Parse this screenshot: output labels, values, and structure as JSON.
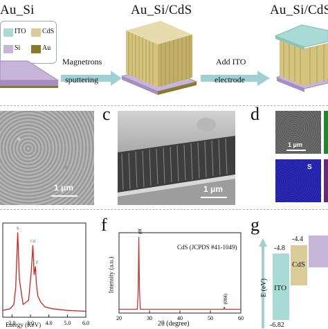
{
  "panel_a": {
    "titles": [
      "Au_Si",
      "Au_Si/CdS",
      "Au_Si/CdS"
    ],
    "legend": [
      {
        "label": "ITO",
        "color": "#a8dbd6"
      },
      {
        "label": "CdS",
        "color": "#d9cc98"
      },
      {
        "label": "Si",
        "color": "#c7b6da"
      },
      {
        "label": "Au",
        "color": "#8a7a2c"
      }
    ],
    "step1": [
      "Magnetrons",
      "sputtering"
    ],
    "step2": [
      "Add ITO",
      "electrode"
    ]
  },
  "panel_b": {
    "scale": "1 μm"
  },
  "panel_c": {
    "letter": "c",
    "scale": "1 μm"
  },
  "panel_d": {
    "letter": "d",
    "scale": "1 μm",
    "element": "S"
  },
  "panel_e": {
    "xlabel": "Energy (KeV)",
    "xticks": [
      "2.0",
      "3.0",
      "4.0",
      "5.0",
      "6.0"
    ],
    "peak_labels": [
      "S",
      "Cd",
      "Cd"
    ]
  },
  "panel_f": {
    "letter": "f",
    "ylabel": "Intensity (a.u.)",
    "xlabel": "2θ (degree)",
    "xticks": [
      "20",
      "30",
      "40",
      "50",
      "60"
    ],
    "reference": "CdS (JCPDS #41-1049)",
    "peak_labels": [
      "(002)",
      "(004)"
    ]
  },
  "panel_g": {
    "letter": "g",
    "ylabel": "E (eV)",
    "ito": {
      "label": "ITO",
      "top": "-4.8",
      "bottom": "-6.82"
    },
    "cds": {
      "label": "CdS",
      "top": "-4.4"
    }
  },
  "chart_data": [
    {
      "type": "line",
      "panel": "e",
      "xlabel": "Energy (KeV)",
      "xlim": [
        1.5,
        6.0
      ],
      "x": [
        1.5,
        1.9,
        2.1,
        2.2,
        2.31,
        2.4,
        2.6,
        2.9,
        3.05,
        3.13,
        3.2,
        3.27,
        3.32,
        3.4,
        3.55,
        3.8,
        4.2,
        5.0,
        6.0
      ],
      "y": [
        0.08,
        0.1,
        0.15,
        0.35,
        1.0,
        0.45,
        0.15,
        0.2,
        0.55,
        0.85,
        0.5,
        0.6,
        0.4,
        0.25,
        0.18,
        0.12,
        0.1,
        0.08,
        0.07
      ]
    },
    {
      "type": "line",
      "panel": "f",
      "xlabel": "2θ (degree)",
      "ylabel": "Intensity (a.u.)",
      "xlim": [
        20,
        60
      ],
      "x": [
        20,
        26,
        26.3,
        26.5,
        26.7,
        27.0,
        30,
        40,
        50,
        54.4,
        54.6,
        54.8,
        60
      ],
      "y": [
        0.05,
        0.05,
        0.3,
        1.0,
        0.3,
        0.05,
        0.05,
        0.05,
        0.05,
        0.05,
        0.08,
        0.05,
        0.05
      ]
    }
  ]
}
